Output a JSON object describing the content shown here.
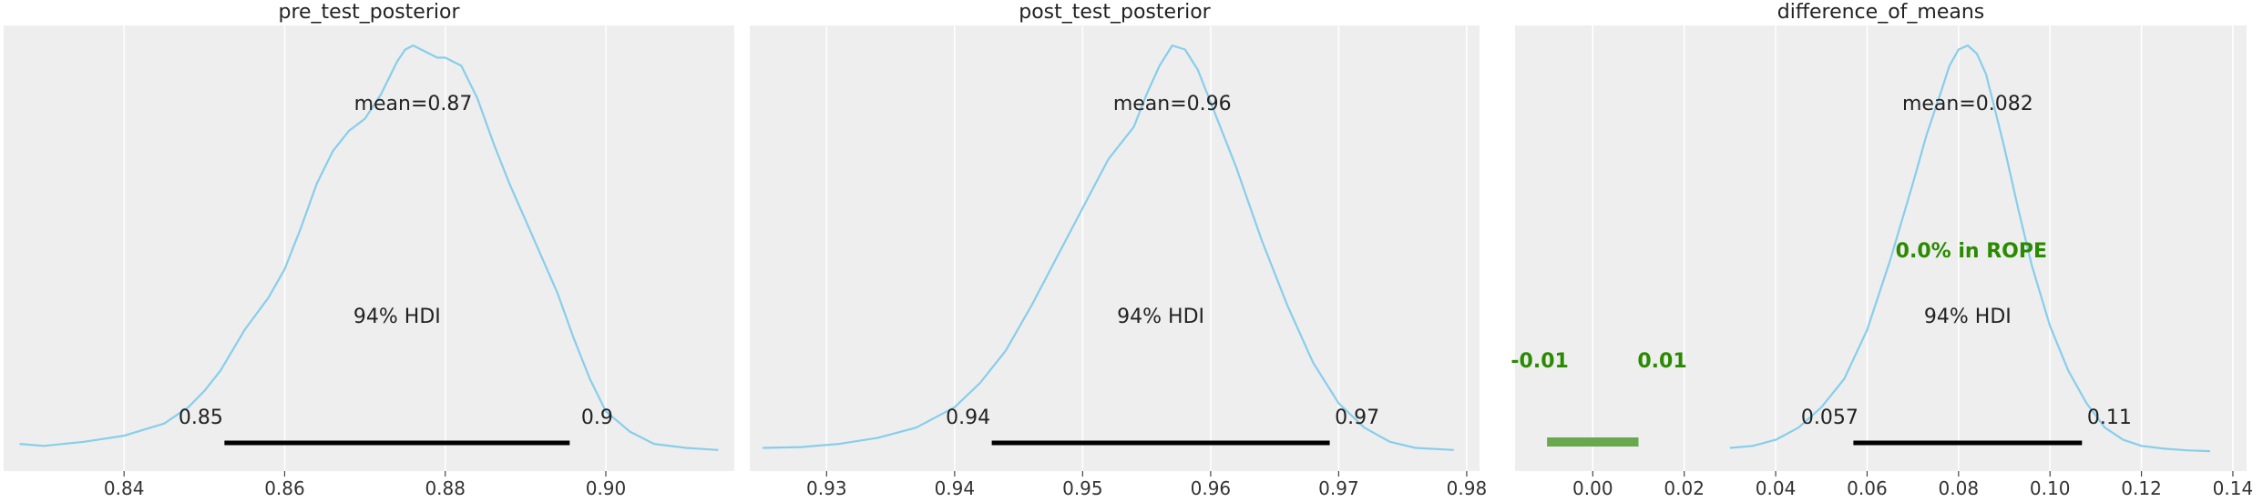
{
  "chart_data": [
    {
      "type": "area",
      "title": "pre_test_posterior",
      "xlim": [
        0.825,
        0.916
      ],
      "xticks": [
        0.84,
        0.86,
        0.88,
        0.9
      ],
      "xtick_labels": [
        "0.84",
        "0.86",
        "0.88",
        "0.90"
      ],
      "grid": "x",
      "mean_label": "mean=0.87",
      "hdi_label": "94% HDI",
      "hdi": [
        0.8525,
        0.8955
      ],
      "hdi_low_label": "0.85",
      "hdi_high_label": "0.9",
      "color": "#87ceeb",
      "density": {
        "x": [
          0.827,
          0.83,
          0.835,
          0.84,
          0.845,
          0.848,
          0.85,
          0.852,
          0.855,
          0.858,
          0.86,
          0.862,
          0.864,
          0.866,
          0.868,
          0.87,
          0.872,
          0.874,
          0.875,
          0.876,
          0.877,
          0.878,
          0.879,
          0.88,
          0.882,
          0.884,
          0.886,
          0.888,
          0.89,
          0.892,
          0.894,
          0.896,
          0.898,
          0.9,
          0.903,
          0.906,
          0.91,
          0.914
        ],
        "y": [
          0.02,
          0.015,
          0.025,
          0.04,
          0.07,
          0.11,
          0.15,
          0.2,
          0.3,
          0.38,
          0.45,
          0.55,
          0.66,
          0.74,
          0.79,
          0.82,
          0.88,
          0.96,
          0.99,
          1.0,
          0.99,
          0.98,
          0.97,
          0.97,
          0.95,
          0.87,
          0.76,
          0.66,
          0.57,
          0.48,
          0.39,
          0.28,
          0.18,
          0.1,
          0.05,
          0.02,
          0.01,
          0.005
        ]
      }
    },
    {
      "type": "area",
      "title": "post_test_posterior",
      "xlim": [
        0.924,
        0.981
      ],
      "xticks": [
        0.93,
        0.94,
        0.95,
        0.96,
        0.97,
        0.98
      ],
      "xtick_labels": [
        "0.93",
        "0.94",
        "0.95",
        "0.96",
        "0.97",
        "0.98"
      ],
      "grid": "x",
      "mean_label": "mean=0.96",
      "hdi_label": "94% HDI",
      "hdi": [
        0.9429,
        0.9693
      ],
      "hdi_low_label": "0.94",
      "hdi_high_label": "0.97",
      "color": "#87ceeb",
      "density": {
        "x": [
          0.925,
          0.928,
          0.931,
          0.934,
          0.937,
          0.94,
          0.942,
          0.944,
          0.946,
          0.948,
          0.95,
          0.952,
          0.954,
          0.955,
          0.956,
          0.957,
          0.958,
          0.959,
          0.96,
          0.962,
          0.964,
          0.966,
          0.968,
          0.97,
          0.972,
          0.974,
          0.976,
          0.979
        ],
        "y": [
          0.01,
          0.012,
          0.02,
          0.035,
          0.06,
          0.11,
          0.17,
          0.25,
          0.36,
          0.48,
          0.6,
          0.72,
          0.8,
          0.88,
          0.95,
          1.0,
          0.99,
          0.94,
          0.86,
          0.7,
          0.52,
          0.36,
          0.22,
          0.12,
          0.06,
          0.025,
          0.01,
          0.005
        ]
      }
    },
    {
      "type": "area",
      "title": "difference_of_means",
      "xlim": [
        -0.017,
        0.143
      ],
      "xticks": [
        0.0,
        0.02,
        0.04,
        0.06,
        0.08,
        0.1,
        0.12,
        0.14
      ],
      "xtick_labels": [
        "0.00",
        "0.02",
        "0.04",
        "0.06",
        "0.08",
        "0.10",
        "0.12",
        "0.14"
      ],
      "grid": "x",
      "mean_label": "mean=0.082",
      "hdi_label": "94% HDI",
      "hdi": [
        0.057,
        0.107
      ],
      "hdi_low_label": "0.057",
      "hdi_high_label": "0.11",
      "color": "#87ceeb",
      "rope": [
        -0.01,
        0.01
      ],
      "rope_low_label": "-0.01",
      "rope_high_label": "0.01",
      "rope_text": "0.0% in ROPE",
      "rope_color": "#6aa84f",
      "rope_text_color": "#2a8a00",
      "density": {
        "x": [
          0.03,
          0.035,
          0.04,
          0.045,
          0.05,
          0.055,
          0.06,
          0.065,
          0.07,
          0.073,
          0.076,
          0.078,
          0.08,
          0.082,
          0.084,
          0.086,
          0.088,
          0.09,
          0.093,
          0.096,
          0.1,
          0.104,
          0.108,
          0.112,
          0.116,
          0.12,
          0.125,
          0.13,
          0.135
        ],
        "y": [
          0.01,
          0.015,
          0.03,
          0.06,
          0.11,
          0.18,
          0.3,
          0.47,
          0.66,
          0.78,
          0.88,
          0.95,
          0.99,
          1.0,
          0.98,
          0.93,
          0.84,
          0.75,
          0.6,
          0.46,
          0.31,
          0.2,
          0.12,
          0.06,
          0.03,
          0.015,
          0.008,
          0.004,
          0.002
        ]
      }
    }
  ]
}
